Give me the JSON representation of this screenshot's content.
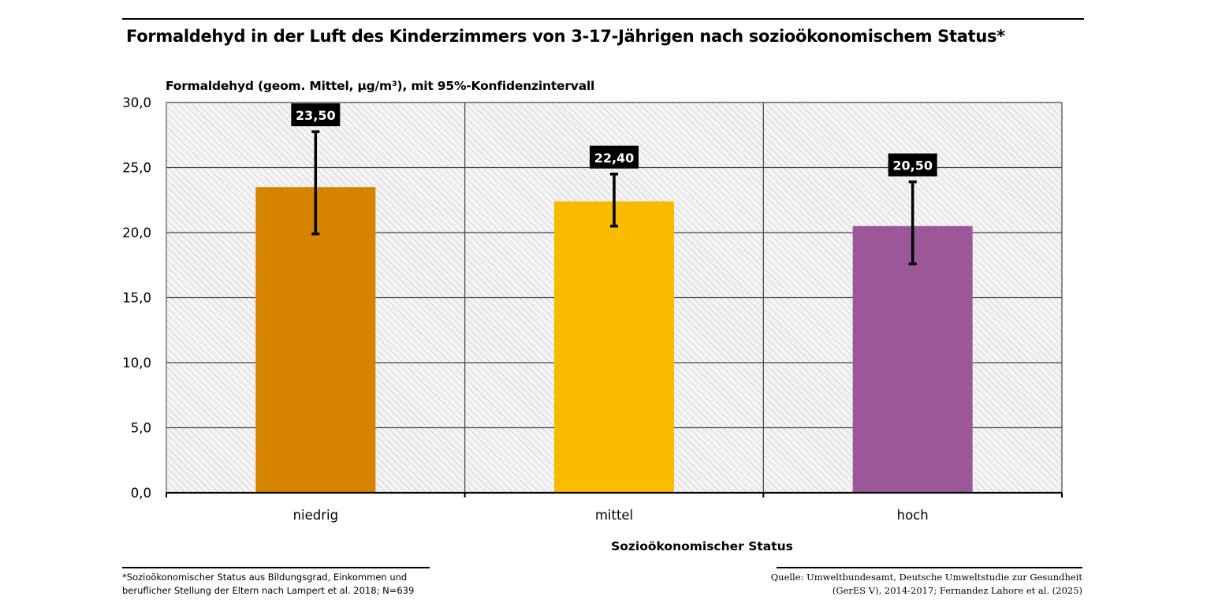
{
  "title": "Formaldehyd in der Luft des Kinderzimmers von 3-17-Jährigen nach sozioökonomischem Status*",
  "footnote_left": [
    "*Sozioökonomischer Status aus Bildungsgrad, Einkommen und",
    "beruflicher Stellung der Eltern nach Lampert et al. 2018; N=639"
  ],
  "footnote_right": [
    "Quelle: Umweltbundesamt, Deutsche Umweltstudie zur Gesundheit",
    "(GerES V), 2014-2017; Fernandez Lahore et al. (2025)"
  ],
  "chart_data": {
    "type": "bar",
    "title": "Formaldehyd in der Luft des Kinderzimmers von 3-17-Jährigen nach sozioökonomischem Status*",
    "ylabel": "Formaldehyd (geom. Mittel, µg/m³), mit 95%-Konfidenzintervall",
    "xlabel": "Sozioökonomischer Status",
    "categories": [
      "niedrig",
      "mittel",
      "hoch"
    ],
    "values": [
      23.5,
      22.4,
      20.5
    ],
    "value_labels": [
      "23,50",
      "22,40",
      "20,50"
    ],
    "ci_lower": [
      19.9,
      20.5,
      17.6
    ],
    "ci_upper": [
      27.75,
      24.5,
      23.9
    ],
    "colors": [
      "#d68400",
      "#f9bb00",
      "#9b5798"
    ],
    "ylim": [
      0,
      30
    ],
    "yticks": [
      0,
      5,
      10,
      15,
      20,
      25,
      30
    ],
    "ytick_labels": [
      "0,0",
      "5,0",
      "10,0",
      "15,0",
      "20,0",
      "25,0",
      "30,0"
    ],
    "grid": true,
    "legend": "none",
    "background": "hatched light gray"
  }
}
